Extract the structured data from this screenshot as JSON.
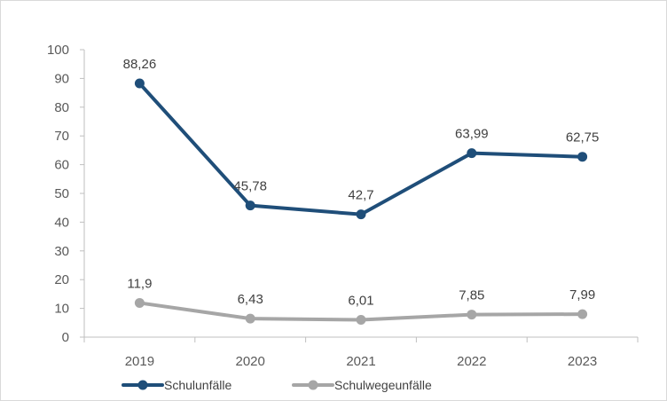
{
  "chart_data": {
    "type": "line",
    "title": "",
    "xlabel": "",
    "ylabel": "",
    "categories": [
      "2019",
      "2020",
      "2021",
      "2022",
      "2023"
    ],
    "ylim": [
      0,
      100
    ],
    "yticks": [
      0,
      10,
      20,
      30,
      40,
      50,
      60,
      70,
      80,
      90,
      100
    ],
    "grid": false,
    "legend_position": "bottom-left",
    "series": [
      {
        "name": "Schulunfälle",
        "color": "#1f4e79",
        "values": [
          88.26,
          45.78,
          42.7,
          63.99,
          62.75
        ],
        "labels": [
          "88,26",
          "45,78",
          "42,7",
          "63,99",
          "62,75"
        ]
      },
      {
        "name": "Schulwegeunfälle",
        "color": "#a6a6a6",
        "values": [
          11.9,
          6.43,
          6.01,
          7.85,
          7.99
        ],
        "labels": [
          "11,9",
          "6,43",
          "6,01",
          "7,85",
          "7,99"
        ]
      }
    ]
  }
}
